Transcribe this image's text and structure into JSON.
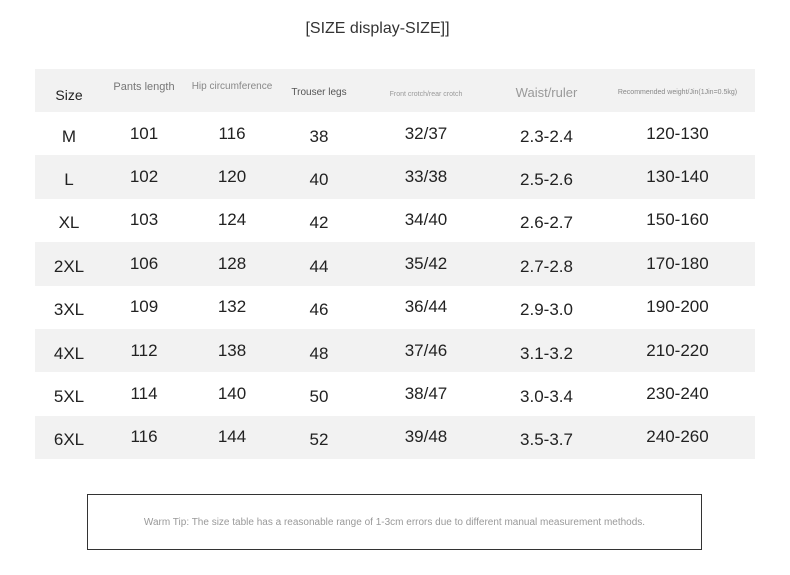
{
  "title": "[SIZE display-SIZE]]",
  "table": {
    "headers": [
      "Size",
      "Pants length",
      "Hip circumference",
      "Trouser legs",
      "Front crotch/rear crotch",
      "Waist/ruler",
      "Recommended weight/Jin(1Jin=0.5kg)"
    ],
    "rows": [
      [
        "M",
        "101",
        "116",
        "38",
        "32/37",
        "2.3-2.4",
        "120-130"
      ],
      [
        "L",
        "102",
        "120",
        "40",
        "33/38",
        "2.5-2.6",
        "130-140"
      ],
      [
        "XL",
        "103",
        "124",
        "42",
        "34/40",
        "2.6-2.7",
        "150-160"
      ],
      [
        "2XL",
        "106",
        "128",
        "44",
        "35/42",
        "2.7-2.8",
        "170-180"
      ],
      [
        "3XL",
        "109",
        "132",
        "46",
        "36/44",
        "2.9-3.0",
        "190-200"
      ],
      [
        "4XL",
        "112",
        "138",
        "48",
        "37/46",
        "3.1-3.2",
        "210-220"
      ],
      [
        "5XL",
        "114",
        "140",
        "50",
        "38/47",
        "3.0-3.4",
        "230-240"
      ],
      [
        "6XL",
        "116",
        "144",
        "52",
        "39/48",
        "3.5-3.7",
        "240-260"
      ]
    ]
  },
  "tip": "Warm Tip: The size table has a reasonable range of 1-3cm errors due to different manual measurement methods."
}
